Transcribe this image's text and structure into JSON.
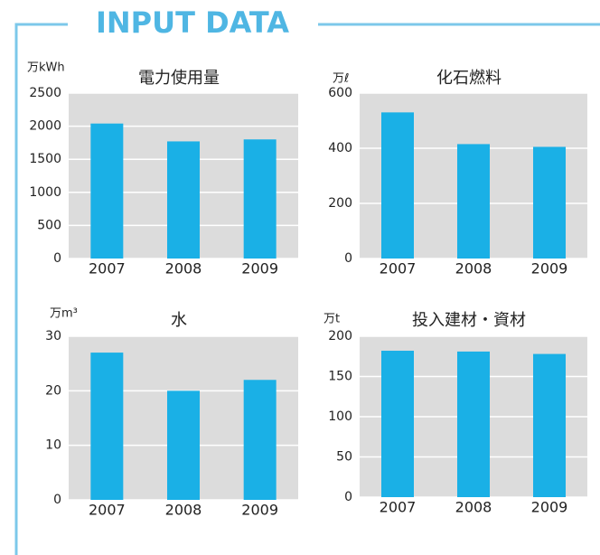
{
  "header": {
    "title": "INPUT DATA"
  },
  "chart_data": [
    {
      "type": "bar",
      "title": "電力使用量",
      "y_label": "万kWh",
      "categories": [
        "2007",
        "2008",
        "2009"
      ],
      "values": [
        2040,
        1770,
        1800
      ],
      "color": "#1ab0e6",
      "ylim": [
        0,
        2500
      ],
      "yticks": [
        0,
        500,
        1000,
        1500,
        2000,
        2500
      ],
      "grid": true
    },
    {
      "type": "bar",
      "title": "化石燃料",
      "y_label": "万ℓ",
      "categories": [
        "2007",
        "2008",
        "2009"
      ],
      "values": [
        530,
        415,
        405
      ],
      "color": "#1ab0e6",
      "ylim": [
        0,
        600
      ],
      "yticks": [
        0,
        200,
        400,
        600
      ],
      "grid": true
    },
    {
      "type": "bar",
      "title": "水",
      "y_label": "万m³",
      "categories": [
        "2007",
        "2008",
        "2009"
      ],
      "values": [
        27,
        20,
        22
      ],
      "color": "#1ab0e6",
      "ylim": [
        0,
        30
      ],
      "yticks": [
        0,
        10,
        20,
        30
      ],
      "grid": true
    },
    {
      "type": "bar",
      "title": "投入建材・資材",
      "y_label": "万t",
      "categories": [
        "2007",
        "2008",
        "2009"
      ],
      "values": [
        182,
        181,
        178
      ],
      "color": "#1ab0e6",
      "ylim": [
        0,
        200
      ],
      "yticks": [
        0,
        50,
        100,
        150,
        200
      ],
      "grid": true
    }
  ]
}
